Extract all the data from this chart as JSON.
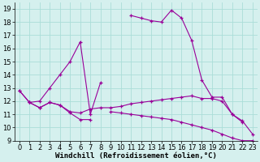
{
  "x": [
    0,
    1,
    2,
    3,
    4,
    5,
    6,
    7,
    8,
    9,
    10,
    11,
    12,
    13,
    14,
    15,
    16,
    17,
    18,
    19,
    20,
    21,
    22,
    23
  ],
  "series1": [
    12.8,
    11.9,
    12.0,
    13.0,
    14.0,
    15.0,
    16.5,
    11.0,
    13.4,
    null,
    null,
    18.5,
    18.3,
    18.1,
    18.0,
    18.9,
    18.3,
    16.6,
    13.6,
    12.3,
    12.3,
    11.0,
    10.5,
    9.5
  ],
  "series2": [
    null,
    11.9,
    11.5,
    11.9,
    11.7,
    11.2,
    11.1,
    11.4,
    11.5,
    11.5,
    11.6,
    11.8,
    11.9,
    12.0,
    12.1,
    12.2,
    12.3,
    12.4,
    12.2,
    12.2,
    12.0,
    11.0,
    10.4,
    null
  ],
  "series3": [
    12.8,
    11.9,
    11.5,
    11.9,
    11.7,
    11.1,
    10.6,
    10.6,
    null,
    11.2,
    11.1,
    11.0,
    10.9,
    10.8,
    10.7,
    10.6,
    10.4,
    10.2,
    10.0,
    9.8,
    9.5,
    9.2,
    9.0,
    9.0
  ],
  "color": "#990099",
  "bg_color": "#d5f0ee",
  "grid_color": "#aaddd8",
  "ylim": [
    9,
    19.5
  ],
  "yticks": [
    9,
    10,
    11,
    12,
    13,
    14,
    15,
    16,
    17,
    18,
    19
  ],
  "xlim": [
    -0.5,
    23.5
  ],
  "xticks": [
    0,
    1,
    2,
    3,
    4,
    5,
    6,
    7,
    8,
    9,
    10,
    11,
    12,
    13,
    14,
    15,
    16,
    17,
    18,
    19,
    20,
    21,
    22,
    23
  ],
  "xlabel": "Windchill (Refroidissement éolien,°C)",
  "xlabel_fontsize": 6.5,
  "tick_fontsize": 6
}
